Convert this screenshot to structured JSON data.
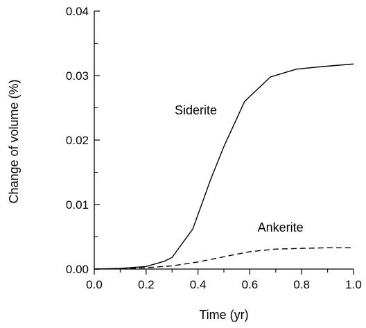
{
  "chart_data": {
    "type": "line",
    "title": "",
    "xlabel": "Time (yr)",
    "ylabel": "Change of volume (%)",
    "xlim": [
      0.0,
      1.0
    ],
    "ylim": [
      0.0,
      0.04
    ],
    "x_ticks": [
      0.0,
      0.2,
      0.4,
      0.6,
      0.8,
      1.0
    ],
    "x_tick_labels": [
      "0.0",
      "0.2",
      "0.4",
      "0.6",
      "0.8",
      "1.0"
    ],
    "y_ticks": [
      0.0,
      0.01,
      0.02,
      0.03,
      0.04
    ],
    "y_tick_labels": [
      "0.00",
      "0.01",
      "0.02",
      "0.03",
      "0.04"
    ],
    "grid": false,
    "legend": "none",
    "series": [
      {
        "name": "Siderite",
        "style": "solid",
        "color": "#000000",
        "x": [
          0.0,
          0.1,
          0.2,
          0.27,
          0.3,
          0.38,
          0.45,
          0.5,
          0.58,
          0.68,
          0.78,
          0.88,
          1.0
        ],
        "y": [
          0.0,
          0.0001,
          0.0004,
          0.0012,
          0.0018,
          0.0062,
          0.014,
          0.019,
          0.026,
          0.0298,
          0.031,
          0.0314,
          0.0318
        ]
      },
      {
        "name": "Ankerite",
        "style": "dashed",
        "color": "#000000",
        "x": [
          0.0,
          0.1,
          0.2,
          0.3,
          0.4,
          0.5,
          0.6,
          0.7,
          0.8,
          0.9,
          1.0
        ],
        "y": [
          0.0,
          5e-05,
          0.0002,
          0.0005,
          0.0011,
          0.0019,
          0.0027,
          0.0031,
          0.0032,
          0.0033,
          0.0033
        ]
      }
    ],
    "annotations": [
      {
        "text": "Siderite",
        "x": 0.31,
        "y": 0.024
      },
      {
        "text": "Ankerite",
        "x": 0.63,
        "y": 0.0058
      }
    ]
  }
}
